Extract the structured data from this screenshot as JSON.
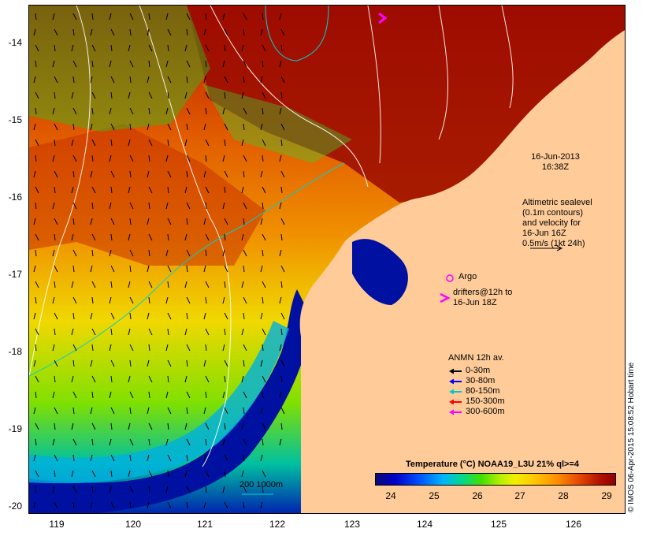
{
  "map": {
    "date_line1": "16-Jun-2013",
    "date_line2": "16:38Z",
    "altimetric": [
      "Altimetric sealevel",
      "(0.1m contours)",
      "and velocity for",
      "16-Jun 16Z",
      "0.5m/s (1kt 24h)"
    ],
    "argo_label": "Argo",
    "drifters": [
      "drifters@12h to",
      "16-Jun 18Z"
    ],
    "scale_label": "200  1000m",
    "timestamp": "© IMOS 06-Apr-2015 15:08:52 Hobart time"
  },
  "axes": {
    "y_ticks": [
      "-14",
      "-15",
      "-16",
      "-17",
      "-18",
      "-19",
      "-20"
    ],
    "x_ticks": [
      "119",
      "120",
      "121",
      "122",
      "123",
      "124",
      "125",
      "126"
    ]
  },
  "legend": {
    "title": "ANMN 12h av.",
    "items": [
      {
        "label": "0-30m",
        "color": "#000000"
      },
      {
        "label": "30-80m",
        "color": "#0000ff"
      },
      {
        "label": "80-150m",
        "color": "#00c8c8"
      },
      {
        "label": "150-300m",
        "color": "#ff0000"
      },
      {
        "label": "300-600m",
        "color": "#ff00ff"
      }
    ]
  },
  "colorbar": {
    "title": "Temperature (°C) NOAA19_L3U 21% ql>=4",
    "labels": [
      "24",
      "25",
      "26",
      "27",
      "28",
      "29"
    ]
  }
}
